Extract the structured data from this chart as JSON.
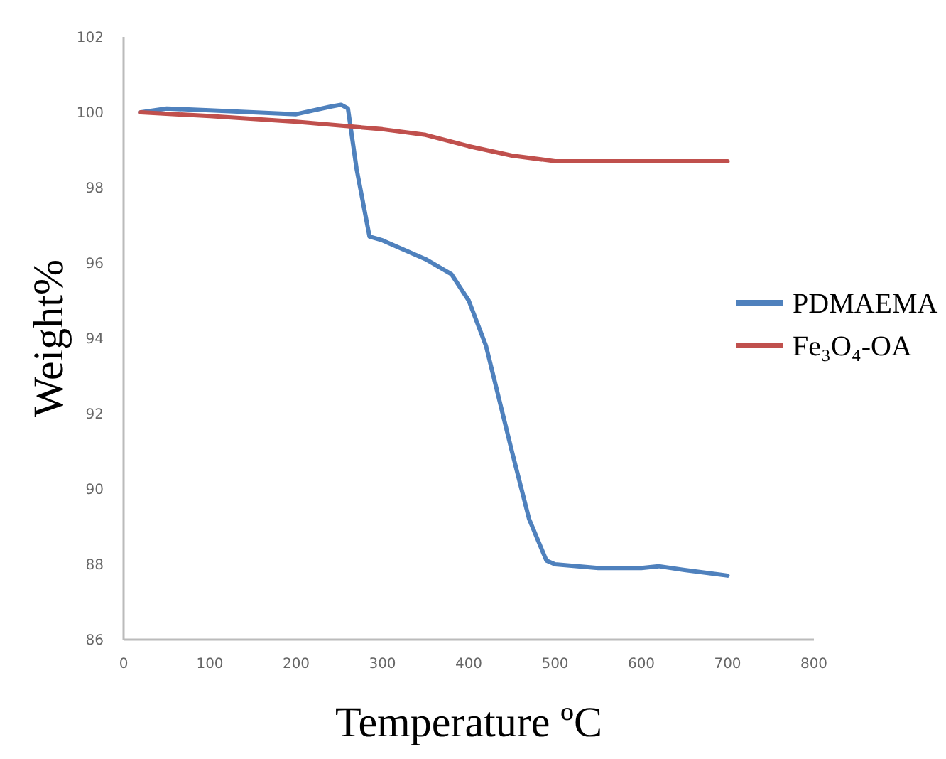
{
  "chart_data": {
    "type": "line",
    "xlabel": "Temperature ºC",
    "ylabel": "Weight%",
    "xlim": [
      0,
      800
    ],
    "xticks": [
      0,
      100,
      200,
      300,
      400,
      500,
      600,
      700,
      800
    ],
    "ylim": [
      86,
      102
    ],
    "yticks": [
      86,
      88,
      90,
      92,
      94,
      96,
      98,
      100,
      102
    ],
    "grid": false,
    "legend": "right",
    "marker": "none",
    "line_style": "solid",
    "series": [
      {
        "name": "PDMAEMA",
        "color": "#4f81bd",
        "x": [
          20,
          50,
          100,
          150,
          200,
          240,
          252,
          260,
          270,
          285,
          300,
          350,
          380,
          400,
          420,
          450,
          470,
          490,
          500,
          550,
          600,
          620,
          650,
          700
        ],
        "values": [
          100,
          100.1,
          100.05,
          100,
          99.95,
          100.15,
          100.2,
          100.1,
          98.5,
          96.7,
          96.6,
          96.1,
          95.7,
          95,
          93.8,
          91,
          89.2,
          88.1,
          88,
          87.9,
          87.9,
          87.95,
          87.85,
          87.7
        ]
      },
      {
        "name": "Fe₃O₄-OA",
        "color": "#c0504d",
        "x": [
          20,
          100,
          200,
          300,
          350,
          400,
          450,
          500,
          550,
          700
        ],
        "values": [
          100,
          99.9,
          99.75,
          99.55,
          99.4,
          99.1,
          98.85,
          98.7,
          98.7,
          98.7
        ]
      }
    ]
  }
}
